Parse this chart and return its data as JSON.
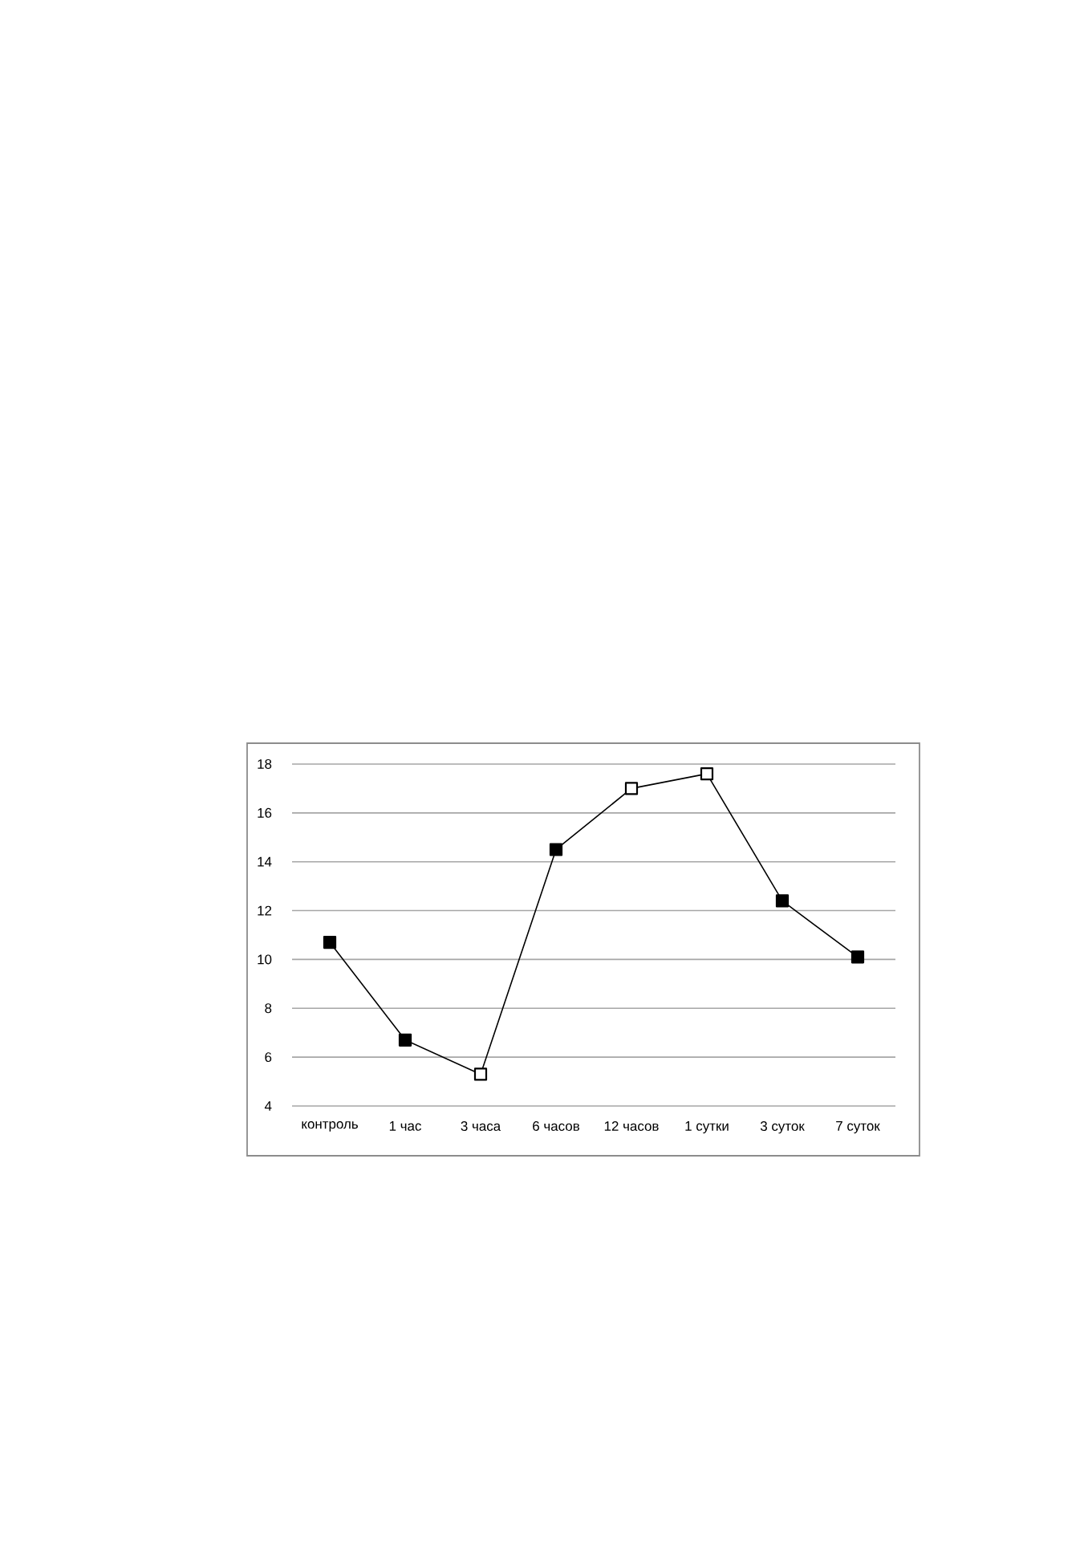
{
  "chart_data": {
    "type": "line",
    "categories": [
      "контроль",
      "1 час",
      "3 часа",
      "6 часов",
      "12 часов",
      "1 сутки",
      "3 суток",
      "7 суток"
    ],
    "series": [
      {
        "color": "#000000",
        "values": [
          10.7,
          6.7,
          5.3,
          14.5,
          17.0,
          17.6,
          12.4,
          10.1
        ],
        "colors": [
          "#000000",
          "#000000",
          "#ffffff",
          "#000000",
          "#ffffff",
          "#ffffff",
          "#000000",
          "#000000"
        ]
      }
    ],
    "ylim": [
      4,
      18
    ],
    "yticks": [
      4,
      6,
      8,
      10,
      12,
      14,
      16,
      18
    ],
    "grid": "y",
    "marker": "square",
    "line_style": "solid"
  }
}
